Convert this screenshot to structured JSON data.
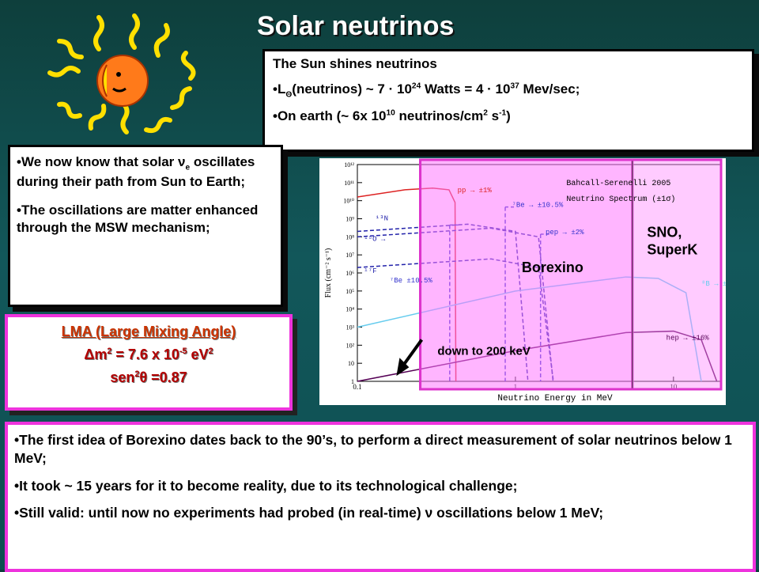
{
  "title": "Solar neutrinos",
  "sun_box": {
    "line1": "The Sun shines neutrinos",
    "lum_prefix": "•L",
    "lum_sub": "Θ",
    "lum_mid": "(neutrinos) ~ 7 · 10",
    "lum_exp1": "24",
    "lum_mid2": " Watts = 4 · 10",
    "lum_exp2": "37",
    "lum_end": " Mev/sec;",
    "earth_prefix": "•On earth  (~ 6x 10",
    "earth_exp1": "10",
    "earth_mid": " neutrinos/cm",
    "earth_exp2": "2",
    "earth_mid2": " s",
    "earth_exp3": "-1",
    "earth_end": ")"
  },
  "osc_box": {
    "p1_a": "•We now know that solar ",
    "p1_nu": "ν",
    "p1_sub": "e",
    "p1_b": " oscillates during their path from Sun to Earth;",
    "p2": "•The oscillations are matter enhanced through the MSW mechanism;"
  },
  "lma_box": {
    "title": "LMA (Large Mixing Angle)",
    "dm_a": "Δm",
    "dm_exp": "2",
    "dm_b": " = 7.6 x 10",
    "dm_exp2": "-5",
    "dm_c": " eV",
    "dm_exp3": "2",
    "sen_a": "sen",
    "sen_exp": "2",
    "sen_b": "θ =0.87"
  },
  "bottom_box": {
    "p1": "•The first idea of Borexino dates back to the 90’s, to perform a  direct measurement of solar neutrinos below 1 MeV;",
    "p2": "•It took ~ 15 years for it to become reality, due to its technological challenge;",
    "p3_a": "•Still valid: until now no experiments had probed (in real-time) ",
    "p3_nu": "ν",
    "p3_b": " oscillations below 1 MeV;"
  },
  "chart_data": {
    "type": "line",
    "title": "Bahcall-Serenelli 2005",
    "subtitle": "Neutrino Spectrum (±1σ)",
    "xlabel": "Neutrino Energy in MeV",
    "ylabel": "Flux (cm⁻² s⁻¹)",
    "xscale": "log",
    "yscale": "log",
    "xlim": [
      0.1,
      20
    ],
    "ylim": [
      1,
      1000000000000.0
    ],
    "x_ticks": [
      "0.1",
      "1",
      "10"
    ],
    "y_ticks": [
      "1",
      "10",
      "10²",
      "10³",
      "10⁴",
      "10⁵",
      "10⁶",
      "10⁷",
      "10⁸",
      "10⁹",
      "10¹⁰",
      "10¹¹",
      "10¹²"
    ],
    "series": [
      {
        "name": "pp",
        "label": "pp → ±1%",
        "color": "#dd2222",
        "x": [
          0.1,
          0.2,
          0.3,
          0.38,
          0.415,
          0.42
        ],
        "y": [
          16000000000.0,
          40000000000.0,
          50000000000.0,
          40000000000.0,
          8000000000.0,
          1
        ]
      },
      {
        "name": "pep",
        "label": "pep → ±2%",
        "color": "#3333cc",
        "x": [
          1.442
        ],
        "y": [
          140000000.0
        ],
        "line": true
      },
      {
        "name": "7Be",
        "label": "⁷Be → ±10.5%",
        "color": "#3333cc",
        "x": [
          0.862
        ],
        "y": [
          4500000000.0
        ],
        "line": true
      },
      {
        "name": "7Be_low",
        "label": "⁷Be ±10.5%",
        "color": "#3333cc",
        "x": [
          0.384
        ],
        "y": [
          450000000.0
        ],
        "line": true
      },
      {
        "name": "13N",
        "label": "¹³N",
        "color": "#2222aa",
        "x": [
          0.1,
          0.5,
          1.0,
          1.2
        ],
        "y": [
          200000000.0,
          500000000.0,
          200000000.0,
          1
        ]
      },
      {
        "name": "15O",
        "label": "¹⁵O →",
        "color": "#2222aa",
        "x": [
          0.1,
          0.7,
          1.4,
          1.73
        ],
        "y": [
          100000000.0,
          300000000.0,
          100000000.0,
          1
        ]
      },
      {
        "name": "17F",
        "label": "¹⁷F",
        "color": "#2222aa",
        "x": [
          0.1,
          0.7,
          1.4,
          1.74
        ],
        "y": [
          2000000.0,
          6000000.0,
          2000000.0,
          1
        ]
      },
      {
        "name": "8B",
        "label": "⁸B → ±16%",
        "color": "#66ccee",
        "x": [
          0.1,
          1,
          5,
          8,
          12,
          15
        ],
        "y": [
          1000.0,
          100000.0,
          600000.0,
          500000.0,
          80000.0,
          1
        ]
      },
      {
        "name": "hep",
        "label": "hep → ±16%",
        "color": "#550055",
        "x": [
          0.1,
          1,
          5,
          10,
          15,
          18.8
        ],
        "y": [
          1,
          50,
          500,
          600,
          200,
          1
        ]
      }
    ],
    "regions": [
      {
        "label": "Borexino",
        "x_from": 0.25,
        "x_to": 5.5
      },
      {
        "label": "SNO,\nSuperK",
        "x_from": 5.5,
        "x_to": 20
      }
    ],
    "annotation": "down to 200 keV"
  }
}
